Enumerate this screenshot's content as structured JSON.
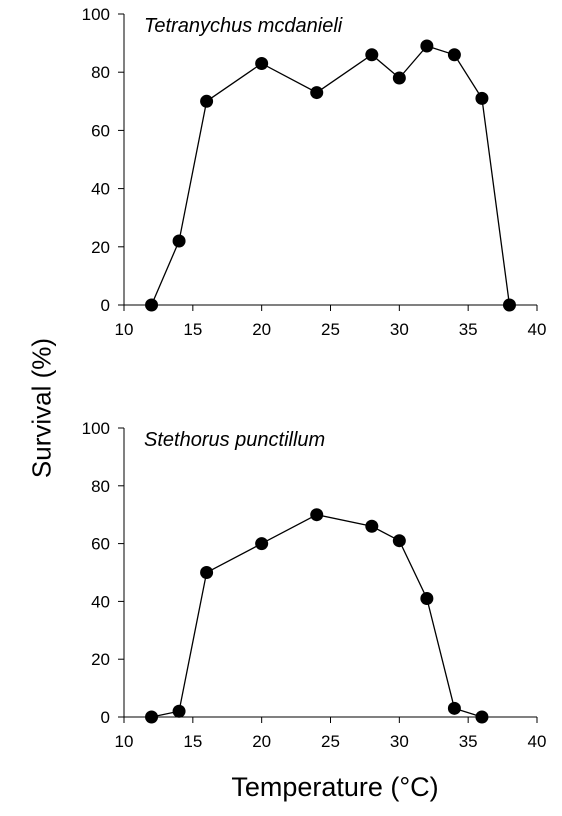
{
  "figure": {
    "ylabel": "Survival (%)",
    "xlabel": "Temperature (°C)"
  },
  "chart_data": [
    {
      "type": "line",
      "title": "Tetranychus mcdanieli",
      "xlabel": "Temperature (°C)",
      "ylabel": "Survival (%)",
      "xlim": [
        10,
        40
      ],
      "ylim": [
        0,
        100
      ],
      "xticks": [
        "10",
        "15",
        "20",
        "25",
        "30",
        "35",
        "40"
      ],
      "yticks": [
        "0",
        "20",
        "40",
        "60",
        "80",
        "100"
      ],
      "grid": false,
      "x": [
        12,
        14,
        16,
        20,
        24,
        28,
        30,
        32,
        34,
        36,
        38
      ],
      "y": [
        0,
        22,
        70,
        83,
        73,
        86,
        78,
        89,
        86,
        71,
        0
      ]
    },
    {
      "type": "line",
      "title": "Stethorus punctillum",
      "xlabel": "Temperature (°C)",
      "ylabel": "Survival (%)",
      "xlim": [
        10,
        40
      ],
      "ylim": [
        0,
        100
      ],
      "xticks": [
        "10",
        "15",
        "20",
        "25",
        "30",
        "35",
        "40"
      ],
      "yticks": [
        "0",
        "20",
        "40",
        "60",
        "80",
        "100"
      ],
      "grid": false,
      "x": [
        12,
        14,
        16,
        20,
        24,
        28,
        30,
        32,
        34,
        36
      ],
      "y": [
        0,
        2,
        50,
        60,
        70,
        66,
        61,
        41,
        3,
        0
      ]
    }
  ]
}
